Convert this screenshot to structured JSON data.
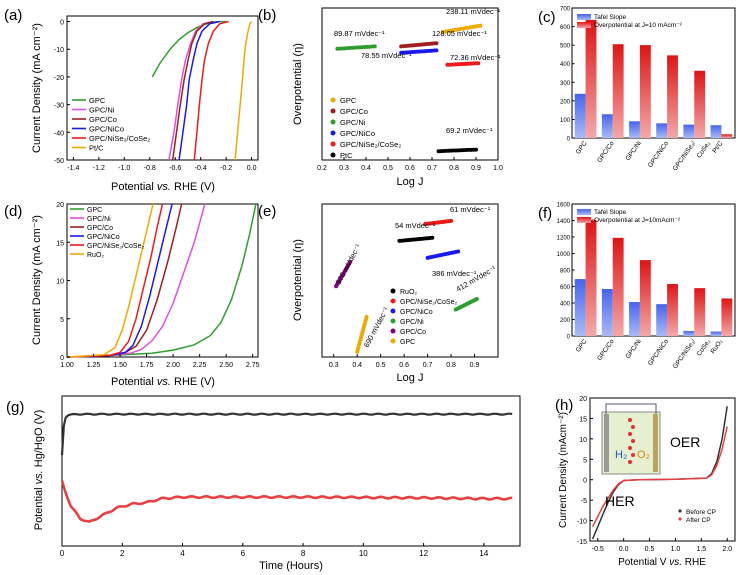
{
  "colors": {
    "green": "#2e9e2e",
    "magenta": "#e04ee0",
    "darkred": "#a01e1e",
    "blue": "#1a1aee",
    "red": "#ee1a1a",
    "orange": "#eeaa00",
    "tafel_blue": "#4466ee",
    "over_red": "#e01414",
    "cp_black": "#333333",
    "cp_red": "#e84040"
  },
  "chart_data": [
    {
      "panel": "a",
      "label": "(a)",
      "type": "line",
      "xlabel_parts": [
        "Potential ",
        "vs.",
        " RHE (V)"
      ],
      "ylabel": "Current Density (mA cm⁻²)",
      "xlim": [
        -1.45,
        0.05
      ],
      "ylim": [
        -50,
        2
      ],
      "xticks": [
        -1.4,
        -1.2,
        -1.0,
        -0.8,
        -0.6,
        -0.4,
        -0.2,
        0.0
      ],
      "xtick_labels": [
        "-1.4",
        "-1.2",
        "-1.0",
        "-0.8",
        "-0.6",
        "-0.4",
        "-0.2",
        "0.0"
      ],
      "yticks": [
        0,
        -10,
        -20,
        -30,
        -40,
        -50
      ],
      "ytick_labels": [
        "0",
        "-10",
        "-20",
        "-30",
        "-40",
        "-50"
      ],
      "series": [
        {
          "name": "GPC",
          "color": "green",
          "x": [
            -0.78,
            -0.72,
            -0.64,
            -0.57,
            -0.5,
            -0.43,
            -0.38,
            -0.33,
            -0.28,
            -0.2
          ],
          "y": [
            -20,
            -15,
            -10,
            -6.5,
            -4,
            -2.2,
            -1.2,
            -0.5,
            -0.1,
            0
          ]
        },
        {
          "name": "GPC/Ni",
          "color": "magenta",
          "x": [
            -0.65,
            -0.61,
            -0.58,
            -0.55,
            -0.52,
            -0.48,
            -0.44,
            -0.38,
            -0.3
          ],
          "y": [
            -50,
            -40,
            -30,
            -21,
            -14,
            -8,
            -3.5,
            -0.8,
            0
          ]
        },
        {
          "name": "GPC/Co",
          "color": "darkred",
          "x": [
            -0.62,
            -0.59,
            -0.56,
            -0.53,
            -0.5,
            -0.47,
            -0.43,
            -0.37,
            -0.3
          ],
          "y": [
            -50,
            -40,
            -30,
            -21,
            -14,
            -8,
            -3.5,
            -0.8,
            0
          ]
        },
        {
          "name": "GPC/NiCo",
          "color": "blue",
          "x": [
            -0.57,
            -0.54,
            -0.51,
            -0.49,
            -0.46,
            -0.43,
            -0.39,
            -0.33,
            -0.25
          ],
          "y": [
            -50,
            -40,
            -30,
            -21,
            -14,
            -8,
            -3.5,
            -0.8,
            0
          ]
        },
        {
          "name": "GPC/NiSe₂/CoSe₂",
          "color": "red",
          "x": [
            -0.45,
            -0.43,
            -0.41,
            -0.39,
            -0.37,
            -0.34,
            -0.3,
            -0.25,
            -0.18
          ],
          "y": [
            -50,
            -40,
            -30,
            -21,
            -14,
            -8,
            -3.5,
            -0.8,
            0
          ]
        },
        {
          "name": "Pt/C",
          "color": "orange",
          "x": [
            -0.13,
            -0.11,
            -0.09,
            -0.07,
            -0.06,
            -0.05,
            -0.03,
            -0.015,
            0.0
          ],
          "y": [
            -50,
            -40,
            -30,
            -20,
            -14,
            -9,
            -4,
            -1,
            0
          ]
        }
      ]
    },
    {
      "panel": "b",
      "label": "(b)",
      "type": "scatter",
      "xlabel": "Log J",
      "ylabel": "Overpotential (η)",
      "xlim": [
        0.2,
        1.0
      ],
      "ylim": [
        -0.05,
        0.9
      ],
      "xticks": [
        0.2,
        0.3,
        0.4,
        0.5,
        0.6,
        0.7,
        0.8,
        0.9,
        1.0
      ],
      "xtick_labels": [
        "0.2",
        "0.3",
        "0.4",
        "0.5",
        "0.6",
        "0.7",
        "0.8",
        "0.9",
        "1.0"
      ],
      "series": [
        {
          "name": "GPC",
          "color": "orange",
          "x_range": [
            0.75,
            0.92
          ],
          "y_range": [
            0.75,
            0.79
          ],
          "annotation": "238.11 mVdec⁻¹"
        },
        {
          "name": "GPC/Co",
          "color": "darkred",
          "x_range": [
            0.56,
            0.72
          ],
          "y_range": [
            0.66,
            0.68
          ],
          "annotation": "128.05 mVdec⁻¹"
        },
        {
          "name": "GPC/Ni",
          "color": "green",
          "x_range": [
            0.27,
            0.44
          ],
          "y_range": [
            0.645,
            0.66
          ],
          "annotation": "89.87 mVdec⁻¹"
        },
        {
          "name": "GPC/NiCo",
          "color": "blue",
          "x_range": [
            0.56,
            0.72
          ],
          "y_range": [
            0.62,
            0.635
          ],
          "annotation": "78.55 mVdec⁻¹"
        },
        {
          "name": "GPC/NiSe₂/CoSe₂",
          "color": "red",
          "x_range": [
            0.77,
            0.91
          ],
          "y_range": [
            0.545,
            0.555
          ],
          "annotation": "72.36 mVdec⁻¹"
        },
        {
          "name": "PtC",
          "color": "black",
          "x_range": [
            0.73,
            0.9
          ],
          "y_range": [
            0.005,
            0.015
          ],
          "annotation": "69.2 mVdec⁻¹"
        }
      ]
    },
    {
      "panel": "c",
      "label": "(c)",
      "type": "bar",
      "categories": [
        "GPC",
        "GPC/Co",
        "GPC/Ni",
        "GPC/NiCo",
        "GPC/NiSe₂/CoSe₂",
        "Pt/C"
      ],
      "category_labels": [
        "GPC",
        "GPC/Co",
        "GPC/Ni",
        "GPC/NiCo",
        "GPC/NiSe₂/",
        "CoSe₂",
        "Pt/C"
      ],
      "ylim": [
        0,
        700
      ],
      "yticks": [
        0,
        100,
        200,
        300,
        400,
        500,
        600,
        700
      ],
      "ytick_labels": [
        "0",
        "100",
        "200",
        "300",
        "400",
        "500",
        "600",
        "700"
      ],
      "series": [
        {
          "name": "Tafel Slope",
          "color": "tafel_blue",
          "values": [
            238,
            128,
            90,
            79,
            72,
            69
          ]
        },
        {
          "name": "Overpotential at J=10 mAcm⁻²",
          "color": "over_red",
          "values": [
            636,
            505,
            500,
            445,
            362,
            20
          ]
        }
      ]
    },
    {
      "panel": "d",
      "label": "(d)",
      "type": "line",
      "xlabel_parts": [
        "Potential ",
        "vs.",
        " RHE (V)"
      ],
      "ylabel": "Current Density (mA cm⁻²)",
      "xlim": [
        1.0,
        2.8
      ],
      "ylim": [
        0,
        20
      ],
      "xticks": [
        1.0,
        1.25,
        1.5,
        1.75,
        2.0,
        2.25,
        2.5,
        2.75
      ],
      "xtick_labels": [
        "1.00",
        "1.25",
        "1.50",
        "1.75",
        "2.00",
        "2.25",
        "2.50",
        "2.75"
      ],
      "yticks": [
        0,
        5,
        10,
        15,
        20
      ],
      "ytick_labels": [
        "0",
        "5",
        "10",
        "15",
        "20"
      ],
      "series": [
        {
          "name": "GPC",
          "color": "green",
          "x": [
            1.0,
            1.4,
            1.8,
            2.0,
            2.2,
            2.35,
            2.45,
            2.55,
            2.65,
            2.72,
            2.78
          ],
          "y": [
            0,
            0.2,
            0.5,
            0.9,
            1.6,
            2.8,
            4.5,
            7.5,
            12,
            16,
            20
          ]
        },
        {
          "name": "GPC/Ni",
          "color": "magenta",
          "x": [
            1.0,
            1.4,
            1.6,
            1.7,
            1.8,
            1.9,
            2.0,
            2.1,
            2.2,
            2.3
          ],
          "y": [
            0,
            0.2,
            0.5,
            1.0,
            2.1,
            4,
            7,
            11,
            15,
            20
          ]
        },
        {
          "name": "GPC/Co",
          "color": "darkred",
          "x": [
            1.0,
            1.4,
            1.55,
            1.65,
            1.75,
            1.85,
            1.95,
            2.03,
            2.08
          ],
          "y": [
            0,
            0.2,
            0.6,
            1.4,
            3.5,
            7.5,
            12.5,
            17,
            20
          ]
        },
        {
          "name": "GPC/NiCo",
          "color": "blue",
          "x": [
            1.0,
            1.4,
            1.55,
            1.62,
            1.7,
            1.78,
            1.85,
            1.92,
            1.99
          ],
          "y": [
            0,
            0.2,
            0.6,
            1.5,
            4,
            8,
            12,
            16,
            20
          ]
        },
        {
          "name": "GPC/NiSe₂/CoSe₂",
          "color": "red",
          "x": [
            1.0,
            1.4,
            1.5,
            1.58,
            1.65,
            1.72,
            1.79,
            1.85,
            1.9
          ],
          "y": [
            0,
            0.2,
            0.6,
            2,
            5,
            9,
            13,
            17,
            20
          ]
        },
        {
          "name": "RuO₂",
          "color": "orange",
          "x": [
            1.0,
            1.35,
            1.45,
            1.52,
            1.58,
            1.64,
            1.7,
            1.76,
            1.81
          ],
          "y": [
            0,
            0.3,
            1.2,
            3.5,
            6.5,
            10,
            13.5,
            17,
            20
          ]
        }
      ]
    },
    {
      "panel": "e",
      "label": "(e)",
      "type": "scatter",
      "xlabel": "Log J",
      "ylabel": "Overpotential (η)",
      "xlim": [
        0.25,
        1.0
      ],
      "ylim": [
        0.0,
        1.45
      ],
      "xticks": [
        0.3,
        0.4,
        0.5,
        0.6,
        0.7,
        0.8,
        0.9
      ],
      "xtick_labels": [
        "0.3",
        "0.4",
        "0.5",
        "0.6",
        "0.7",
        "0.8",
        "0.9"
      ],
      "series": [
        {
          "name": "RuO₂",
          "color": "black",
          "x_range": [
            0.58,
            0.72
          ],
          "y_range": [
            1.1,
            1.13
          ],
          "annotation": "54 mVdec⁻¹"
        },
        {
          "name": "GPC/NiSe₂/CoSe₂",
          "color": "red",
          "x_range": [
            0.69,
            0.8
          ],
          "y_range": [
            1.26,
            1.29
          ],
          "annotation": "61 mVdec⁻¹"
        },
        {
          "name": "GPC/NiCo",
          "color": "blue",
          "x_range": [
            0.7,
            0.83
          ],
          "y_range": [
            0.94,
            1.0
          ],
          "annotation": "386 mVdec⁻¹"
        },
        {
          "name": "GPC/Ni",
          "color": "green",
          "x_range": [
            0.82,
            0.91
          ],
          "y_range": [
            0.45,
            0.55
          ],
          "annotation": "412 mVdec⁻¹"
        },
        {
          "name": "GPC/Co",
          "color": "purple",
          "x_range": [
            0.31,
            0.37
          ],
          "y_range": [
            0.67,
            0.9
          ],
          "annotation": "570 mVdec⁻¹"
        },
        {
          "name": "GPC",
          "color": "orange",
          "x_range": [
            0.4,
            0.44
          ],
          "y_range": [
            0.05,
            0.38
          ],
          "annotation": "690 mVdec⁻¹"
        }
      ]
    },
    {
      "panel": "f",
      "label": "(f)",
      "type": "bar",
      "categories": [
        "GPC",
        "GPC/Co",
        "GPC/Ni",
        "GPC/NiCo",
        "GPC/NiSe₂/CoSe₂",
        "RuO₂"
      ],
      "category_labels": [
        "GPC",
        "GPC/Co",
        "GPC/Ni",
        "GPC/NiCo",
        "GPC/NiSe₂/",
        "CoSe₂",
        "RuO₂"
      ],
      "ylim": [
        0,
        1600
      ],
      "yticks": [
        0,
        200,
        400,
        600,
        800,
        1000,
        1200,
        1400,
        1600
      ],
      "ytick_labels": [
        "0",
        "200",
        "400",
        "600",
        "800",
        "1000",
        "1200",
        "1400",
        "1600"
      ],
      "series": [
        {
          "name": "Tafel Slope",
          "color": "tafel_blue",
          "values": [
            690,
            570,
            412,
            386,
            61,
            54
          ]
        },
        {
          "name": "Overpotential at J=10mAcm⁻²",
          "color": "over_red",
          "values": [
            1410,
            1190,
            920,
            630,
            580,
            455
          ]
        }
      ]
    },
    {
      "panel": "g",
      "label": "(g)",
      "type": "line",
      "xlabel": "Time (Hours)",
      "ylabel_parts": [
        "Potential ",
        "vs.",
        " Hg/HgO (V)"
      ],
      "xlim": [
        0,
        15.2
      ],
      "ylim": [
        -1.0,
        0.9
      ],
      "xticks": [
        0,
        2,
        4,
        6,
        8,
        10,
        12,
        14
      ],
      "xtick_labels": [
        "0",
        "2",
        "4",
        "6",
        "8",
        "10",
        "12",
        "14"
      ],
      "series": [
        {
          "name": "OER",
          "color": "cp_black",
          "x": [
            0,
            0.05,
            0.1,
            0.2,
            0.5,
            15
          ],
          "y": [
            0.15,
            0.5,
            0.62,
            0.66,
            0.67,
            0.67
          ]
        },
        {
          "name": "HER",
          "color": "cp_red",
          "x": [
            0,
            0.1,
            0.3,
            0.6,
            0.9,
            1.3,
            1.8,
            2.3,
            2.8,
            3.3,
            4,
            6,
            8,
            10,
            12,
            14,
            15
          ],
          "y": [
            -0.18,
            -0.3,
            -0.5,
            -0.65,
            -0.7,
            -0.62,
            -0.52,
            -0.47,
            -0.45,
            -0.4,
            -0.38,
            -0.38,
            -0.38,
            -0.385,
            -0.39,
            -0.4,
            -0.4
          ]
        }
      ]
    },
    {
      "panel": "h",
      "label": "(h)",
      "type": "line",
      "xlabel_parts": [
        "Potential V ",
        "vs.",
        " RHE"
      ],
      "ylabel": "Current Density (mAcm⁻²)",
      "xlim": [
        -0.65,
        2.15
      ],
      "ylim": [
        -15,
        20
      ],
      "xticks": [
        -0.5,
        0.0,
        0.5,
        1.0,
        1.5,
        2.0
      ],
      "xtick_labels": [
        "-0.5",
        "0.0",
        "0.5",
        "1.0",
        "1.5",
        "2.0"
      ],
      "yticks": [
        -15,
        -10,
        -5,
        0,
        5,
        10,
        15,
        20
      ],
      "ytick_labels": [
        "-15",
        "-10",
        "-5",
        "0",
        "5",
        "10",
        "15",
        "20"
      ],
      "annotations": [
        "OER",
        "HER"
      ],
      "inset_labels": [
        "H₂",
        "O₂"
      ],
      "series": [
        {
          "name": "Before CP",
          "color": "cp_black",
          "x": [
            -0.6,
            -0.5,
            -0.4,
            -0.3,
            -0.2,
            -0.1,
            0.0,
            0.3,
            1.0,
            1.6,
            1.7,
            1.8,
            1.9,
            2.0
          ],
          "y": [
            -14.5,
            -11.5,
            -8.5,
            -5.5,
            -3,
            -1.2,
            -0.2,
            0,
            0.1,
            0.4,
            1.5,
            4.5,
            10,
            18
          ]
        },
        {
          "name": "After CP",
          "color": "cp_red",
          "x": [
            -0.6,
            -0.5,
            -0.4,
            -0.3,
            -0.2,
            -0.1,
            0.0,
            0.3,
            1.0,
            1.6,
            1.7,
            1.8,
            1.9,
            2.0
          ],
          "y": [
            -11.5,
            -9,
            -6.5,
            -4.5,
            -2.5,
            -1,
            -0.2,
            0,
            0.1,
            0.4,
            1.2,
            3.5,
            7.5,
            13
          ]
        }
      ]
    }
  ]
}
